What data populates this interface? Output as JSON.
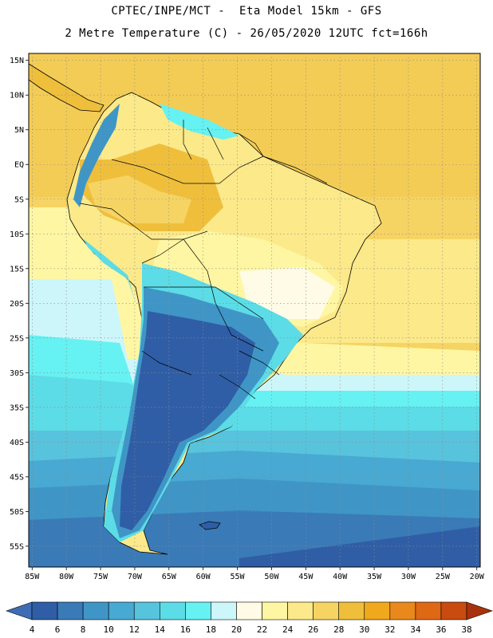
{
  "header": {
    "line1": "CPTEC/INPE/MCT -  Eta Model 15km - GFS",
    "line2": "2 Metre Temperature (C) - 26/05/2020 12UTC fct=166h"
  },
  "axes": {
    "lat_labels": [
      "15N",
      "10N",
      "5N",
      "EQ",
      "5S",
      "10S",
      "15S",
      "20S",
      "25S",
      "30S",
      "35S",
      "40S",
      "45S",
      "50S",
      "55S"
    ],
    "lon_labels": [
      "85W",
      "80W",
      "75W",
      "70W",
      "65W",
      "60W",
      "55W",
      "50W",
      "45W",
      "40W",
      "35W",
      "30W",
      "25W",
      "20W"
    ],
    "lat_values": [
      15,
      10,
      5,
      0,
      -5,
      -10,
      -15,
      -20,
      -25,
      -30,
      -35,
      -40,
      -45,
      -50,
      -55
    ],
    "lon_values": [
      -85,
      -80,
      -75,
      -70,
      -65,
      -60,
      -55,
      -50,
      -45,
      -40,
      -35,
      -30,
      -25,
      -20
    ],
    "extent": {
      "lon_min": -85.5,
      "lon_max": -19.5,
      "lat_min": -58,
      "lat_max": 16
    },
    "grid": "dotted"
  },
  "colorbar": {
    "levels": [
      "4",
      "6",
      "8",
      "10",
      "12",
      "14",
      "16",
      "18",
      "20",
      "22",
      "24",
      "26",
      "28",
      "30",
      "32",
      "34",
      "36",
      "38"
    ],
    "colors": [
      "#3f6db4",
      "#2f5ea6",
      "#3a7ab7",
      "#3f96c6",
      "#48a9d2",
      "#58c3dc",
      "#5cdce6",
      "#66f1f2",
      "#cdf6fb",
      "#fffbe6",
      "#fff6a3",
      "#fce98a",
      "#f6d463",
      "#efbf3c",
      "#f0a81c",
      "#e9891b",
      "#de6814",
      "#c94b10",
      "#a9320c"
    ]
  },
  "colors": {
    "land_border": "#000000",
    "grid": "#8a8a8a"
  }
}
